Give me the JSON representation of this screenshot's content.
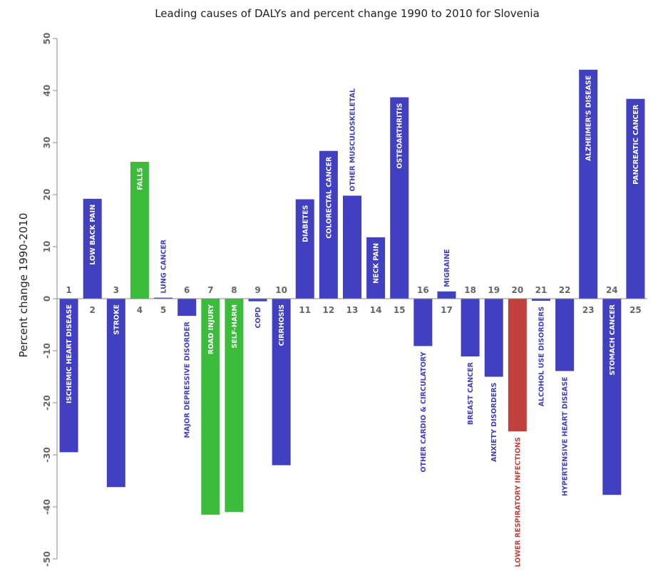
{
  "chart_data": {
    "type": "bar",
    "title": "Leading causes of DALYs and percent change 1990 to 2010 for Slovenia",
    "ylabel": "Percent change 1990-2010",
    "ylim": [
      -50,
      50
    ],
    "yticks": [
      -50,
      -40,
      -30,
      -20,
      -10,
      0,
      10,
      20,
      30,
      40,
      50
    ],
    "colors": {
      "blue": "#4040c0",
      "green": "#3dbb3d",
      "red": "#c0403c",
      "axis": "#888888",
      "tick_text": "#666666"
    },
    "bars": [
      {
        "rank": "1",
        "label": "ISCHEMIC HEART DISEASE",
        "value": -29.5,
        "color": "#4040c0"
      },
      {
        "rank": "2",
        "label": "LOW BACK PAIN",
        "value": 19.2,
        "color": "#4040c0"
      },
      {
        "rank": "3",
        "label": "STROKE",
        "value": -36.2,
        "color": "#4040c0"
      },
      {
        "rank": "4",
        "label": "FALLS",
        "value": 26.3,
        "color": "#3dbb3d"
      },
      {
        "rank": "5",
        "label": "LUNG CANCER",
        "value": 0.2,
        "color": "#4040c0"
      },
      {
        "rank": "6",
        "label": "MAJOR DEPRESSIVE DISORDER",
        "value": -3.3,
        "color": "#4040c0"
      },
      {
        "rank": "7",
        "label": "ROAD INJURY",
        "value": -41.5,
        "color": "#3dbb3d"
      },
      {
        "rank": "8",
        "label": "SELF-HARM",
        "value": -41.0,
        "color": "#3dbb3d"
      },
      {
        "rank": "9",
        "label": "COPD",
        "value": -0.5,
        "color": "#4040c0"
      },
      {
        "rank": "10",
        "label": "CIRRHOSIS",
        "value": -32.0,
        "color": "#4040c0"
      },
      {
        "rank": "11",
        "label": "DIABETES",
        "value": 19.1,
        "color": "#4040c0"
      },
      {
        "rank": "12",
        "label": "COLORECTAL CANCER",
        "value": 28.4,
        "color": "#4040c0"
      },
      {
        "rank": "13",
        "label": "OTHER MUSCULOSKELETAL",
        "value": 19.8,
        "color": "#4040c0"
      },
      {
        "rank": "14",
        "label": "NECK PAIN",
        "value": 11.8,
        "color": "#4040c0"
      },
      {
        "rank": "15",
        "label": "OSTEOARTHRITIS",
        "value": 38.7,
        "color": "#4040c0"
      },
      {
        "rank": "16",
        "label": "OTHER CARDIO & CIRCULATORY",
        "value": -9.1,
        "color": "#4040c0"
      },
      {
        "rank": "17",
        "label": "MIGRAINE",
        "value": 1.4,
        "color": "#4040c0"
      },
      {
        "rank": "18",
        "label": "BREAST CANCER",
        "value": -11.1,
        "color": "#4040c0"
      },
      {
        "rank": "19",
        "label": "ANXIETY DISORDERS",
        "value": -15.0,
        "color": "#4040c0"
      },
      {
        "rank": "20",
        "label": "LOWER RESPIRATORY INFECTIONS",
        "value": -25.5,
        "color": "#c0403c"
      },
      {
        "rank": "21",
        "label": "ALCOHOL USE DISORDERS",
        "value": -0.4,
        "color": "#4040c0"
      },
      {
        "rank": "22",
        "label": "HYPERTENSIVE HEART DISEASE",
        "value": -13.9,
        "color": "#4040c0"
      },
      {
        "rank": "23",
        "label": "ALZHEIMER'S DISEASE",
        "value": 44.0,
        "color": "#4040c0"
      },
      {
        "rank": "24",
        "label": "STOMACH CANCER",
        "value": -37.7,
        "color": "#4040c0"
      },
      {
        "rank": "25",
        "label": "PANCREATIC CANCER",
        "value": 38.4,
        "color": "#4040c0"
      }
    ]
  }
}
